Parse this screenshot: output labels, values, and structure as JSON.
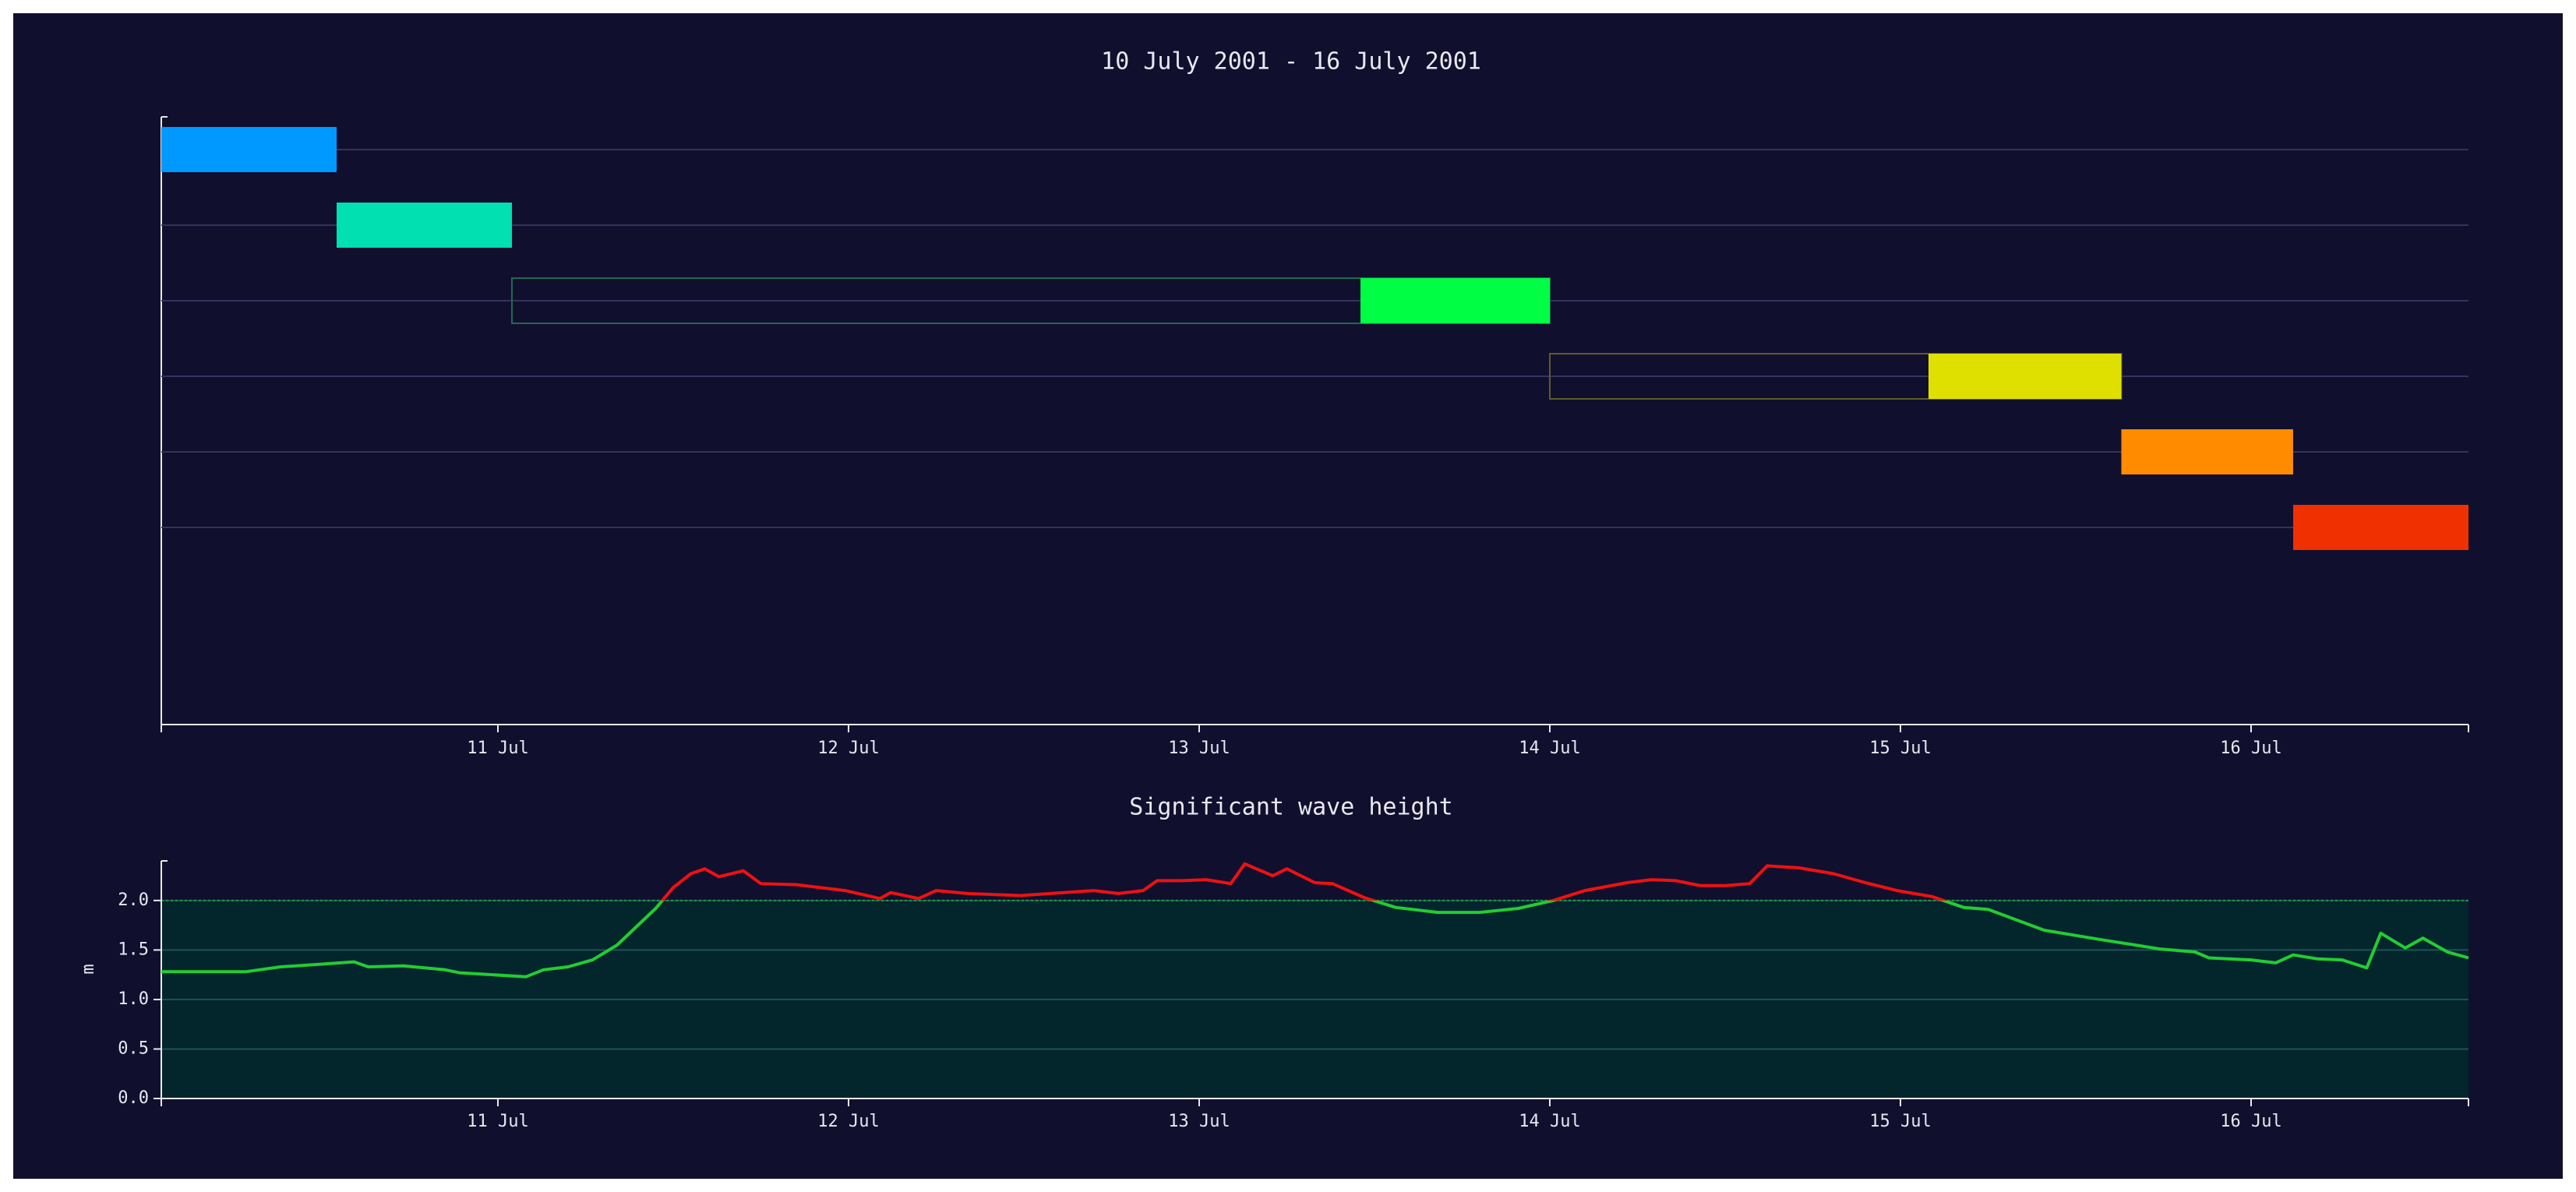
{
  "chart_data": [
    {
      "type": "gantt",
      "title": "10 July 2001 - 16 July 2001",
      "xlim": [
        10.04,
        16.62
      ],
      "xticks": [
        {
          "value": 11,
          "label": "11 Jul"
        },
        {
          "value": 12,
          "label": "12 Jul"
        },
        {
          "value": 13,
          "label": "13 Jul"
        },
        {
          "value": 14,
          "label": "14 Jul"
        },
        {
          "value": 15,
          "label": "15 Jul"
        },
        {
          "value": 16,
          "label": "16 Jul"
        }
      ],
      "bars": [
        {
          "start": 10.04,
          "end": 10.54,
          "color": "#0099ff"
        },
        {
          "start": 10.54,
          "end": 11.04,
          "color": "#00e0b0"
        },
        {
          "window_start": 11.04,
          "start": 13.46,
          "end": 14.0,
          "color": "#00ff44",
          "window_color": "#1f6a52"
        },
        {
          "window_start": 14.0,
          "start": 15.08,
          "end": 15.63,
          "color": "#e0e000",
          "window_color": "#5e5c2a"
        },
        {
          "start": 15.63,
          "end": 16.12,
          "color": "#ff8c00"
        },
        {
          "start": 16.12,
          "end": 16.62,
          "color": "#f03000"
        }
      ]
    },
    {
      "type": "line",
      "title": "Significant wave height",
      "ylabel": "m",
      "xlim": [
        10.04,
        16.62
      ],
      "xticks": [
        {
          "value": 11,
          "label": "11 Jul"
        },
        {
          "value": 12,
          "label": "12 Jul"
        },
        {
          "value": 13,
          "label": "13 Jul"
        },
        {
          "value": 14,
          "label": "14 Jul"
        },
        {
          "value": 15,
          "label": "15 Jul"
        },
        {
          "value": 16,
          "label": "16 Jul"
        }
      ],
      "ylim": [
        0,
        2.4
      ],
      "yticks": [
        {
          "value": 0,
          "label": "0.0"
        },
        {
          "value": 0.5,
          "label": "0.5"
        },
        {
          "value": 1,
          "label": "1.0"
        },
        {
          "value": 1.5,
          "label": "1.5"
        },
        {
          "value": 2,
          "label": "2.0"
        }
      ],
      "threshold": 2.0,
      "x": [
        10.04,
        10.28,
        10.38,
        10.47,
        10.59,
        10.63,
        10.73,
        10.85,
        10.89,
        11.08,
        11.13,
        11.2,
        11.27,
        11.34,
        11.45,
        11.5,
        11.55,
        11.59,
        11.63,
        11.7,
        11.75,
        11.85,
        11.99,
        12.09,
        12.12,
        12.2,
        12.25,
        12.34,
        12.49,
        12.7,
        12.77,
        12.84,
        12.88,
        12.95,
        13.02,
        13.09,
        13.13,
        13.21,
        13.25,
        13.33,
        13.38,
        13.47,
        13.56,
        13.68,
        13.8,
        13.91,
        14.01,
        14.1,
        14.22,
        14.29,
        14.36,
        14.43,
        14.5,
        14.57,
        14.62,
        14.71,
        14.81,
        14.9,
        14.99,
        15.09,
        15.18,
        15.25,
        15.41,
        15.58,
        15.67,
        15.74,
        15.84,
        15.88,
        16.0,
        16.07,
        16.12,
        16.19,
        16.26,
        16.33,
        16.37,
        16.44,
        16.49,
        16.56,
        16.62
      ],
      "values": [
        1.28,
        1.28,
        1.33,
        1.35,
        1.38,
        1.33,
        1.34,
        1.3,
        1.27,
        1.23,
        1.3,
        1.33,
        1.4,
        1.55,
        1.92,
        2.13,
        2.27,
        2.32,
        2.24,
        2.3,
        2.17,
        2.16,
        2.1,
        2.02,
        2.08,
        2.02,
        2.1,
        2.07,
        2.05,
        2.1,
        2.07,
        2.1,
        2.2,
        2.2,
        2.21,
        2.17,
        2.37,
        2.25,
        2.32,
        2.18,
        2.17,
        2.03,
        1.93,
        1.88,
        1.88,
        1.92,
        2.0,
        2.1,
        2.18,
        2.21,
        2.2,
        2.15,
        2.15,
        2.17,
        2.35,
        2.33,
        2.27,
        2.18,
        2.1,
        2.04,
        1.93,
        1.91,
        1.7,
        1.6,
        1.55,
        1.51,
        1.48,
        1.42,
        1.4,
        1.37,
        1.45,
        1.41,
        1.4,
        1.32,
        1.67,
        1.52,
        1.62,
        1.48,
        1.42
      ],
      "color": "#22cc33",
      "above_color": "#ee1111",
      "below_fill": "#02262c",
      "grid": true
    }
  ]
}
